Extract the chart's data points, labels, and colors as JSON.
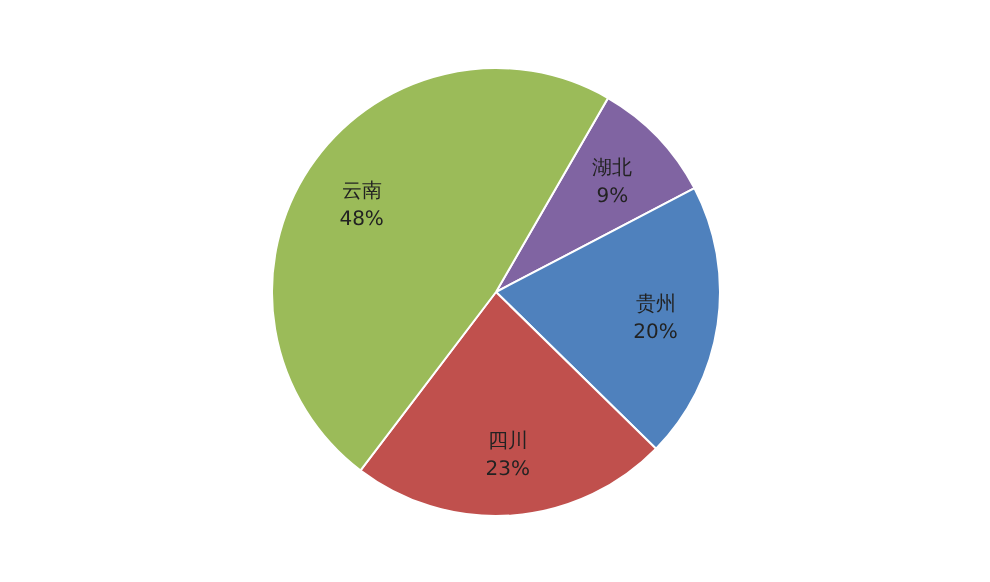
{
  "chart_data": {
    "type": "pie",
    "categories": [
      "湖北",
      "贵州",
      "四川",
      "云南"
    ],
    "values": [
      9,
      20,
      23,
      48
    ],
    "colors": [
      "#8064a2",
      "#4f81bd",
      "#c0504d",
      "#9bbb59"
    ],
    "value_labels": [
      "9%",
      "20%",
      "23%",
      "48%"
    ]
  }
}
